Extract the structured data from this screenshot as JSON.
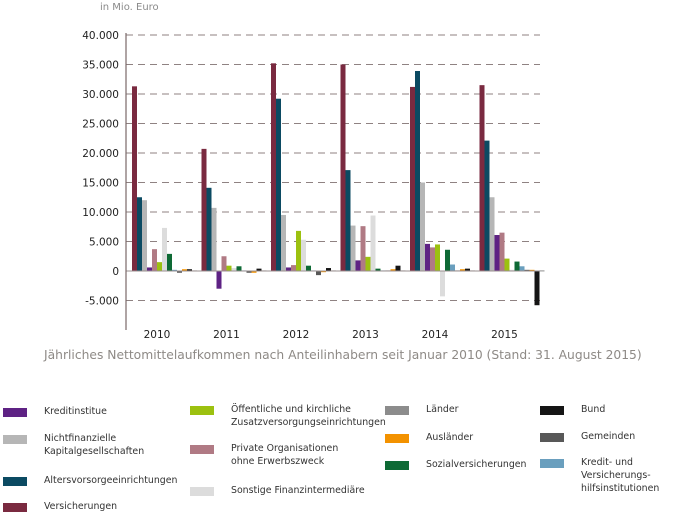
{
  "chart_data": {
    "type": "bar",
    "title": "Jährliches Nettomittelaufkommen nach Anteilinhabern seit Januar 2010 (Stand: 31. August 2015)",
    "ylabel": "in Mio. Euro",
    "xlabel": "",
    "ylim": [
      -9000,
      40000
    ],
    "yticks": [
      40000,
      35000,
      30000,
      25000,
      20000,
      15000,
      10000,
      5000,
      0,
      -5000
    ],
    "ytick_labels": [
      "40.000",
      "35.000",
      "30.000",
      "25.000",
      "20.000",
      "15.000",
      "10.000",
      "5.000",
      "0",
      "-5.000"
    ],
    "grid": true,
    "categories": [
      "2010",
      "2011",
      "2012",
      "2013",
      "2014",
      "2015"
    ],
    "series": [
      {
        "name": "Versicherungen",
        "color": "#7a2a40",
        "values": [
          31300,
          20700,
          35200,
          35000,
          31200,
          31500
        ]
      },
      {
        "name": "Altersvorsorgeeinrichtungen",
        "color": "#0b4a62",
        "values": [
          12500,
          14100,
          29200,
          17100,
          33900,
          22100
        ]
      },
      {
        "name": "Nichtfinanzielle Kapitalgesellschaften",
        "color": "#b6b6b6",
        "values": [
          12000,
          10700,
          9500,
          7700,
          15000,
          12500
        ]
      },
      {
        "name": "Kreditinstitue",
        "color": "#5e2284",
        "values": [
          600,
          -3000,
          600,
          1800,
          4600,
          6100
        ]
      },
      {
        "name": "Private Organisationen ohne Erwerbszweck",
        "color": "#b07a84",
        "values": [
          3700,
          2500,
          1000,
          7600,
          4000,
          6500
        ]
      },
      {
        "name": "Öffentliche und kirchliche Zusatzversorgungseinrichtungen",
        "color": "#9cc110",
        "values": [
          1500,
          900,
          6800,
          2400,
          4500,
          2100
        ]
      },
      {
        "name": "Sonstige Finanzintermediäre",
        "color": "#dcdcdc",
        "values": [
          7300,
          500,
          5300,
          9400,
          -4300,
          200
        ]
      },
      {
        "name": "Sozialversicherungen",
        "color": "#0e6a35",
        "values": [
          2900,
          800,
          900,
          400,
          3600,
          1600
        ]
      },
      {
        "name": "Kredit- und Versicherungs-\nhilfsinstitutionen",
        "color": "#6a9fbe",
        "values": [
          200,
          100,
          100,
          100,
          1100,
          800
        ]
      },
      {
        "name": "Gemeinden",
        "color": "#585858",
        "values": [
          -300,
          -300,
          -700,
          100,
          100,
          200
        ]
      },
      {
        "name": "Ausländer",
        "color": "#f39200",
        "values": [
          300,
          -300,
          -200,
          300,
          300,
          200
        ]
      },
      {
        "name": "Bund",
        "color": "#151515",
        "values": [
          300,
          400,
          500,
          900,
          400,
          -5800
        ]
      },
      {
        "name": "Länder",
        "color": "#8c8c8c",
        "values": [
          100,
          100,
          100,
          100,
          100,
          100
        ]
      }
    ],
    "legend": {
      "placement": "bottom",
      "columns": [
        [
          "Kreditinstitue",
          "Nichtfinanzielle\nKapitalgesellschaften",
          "Altersvorsorgeeinrichtungen",
          "Versicherungen"
        ],
        [
          "Öffentliche und kirchliche\nZusatzversorgungseinrichtungen",
          "Private Organisationen\nohne Erwerbszweck",
          "Sonstige Finanzintermediäre"
        ],
        [
          "Länder",
          "Ausländer",
          "Sozialversicherungen"
        ],
        [
          "Bund",
          "Gemeinden",
          "Kredit- und Versicherungs-\nhilfsinstitutionen"
        ]
      ]
    }
  },
  "legend_colors": {
    "Kreditinstitue": "#5e2284",
    "Nichtfinanzielle\nKapitalgesellschaften": "#b6b6b6",
    "Altersvorsorgeeinrichtungen": "#0b4a62",
    "Versicherungen": "#7a2a40",
    "Öffentliche und kirchliche\nZusatzversorgungseinrichtungen": "#9cc110",
    "Private Organisationen\nohne Erwerbszweck": "#b07a84",
    "Sonstige Finanzintermediäre": "#dcdcdc",
    "Länder": "#8c8c8c",
    "Ausländer": "#f39200",
    "Sozialversicherungen": "#0e6a35",
    "Bund": "#151515",
    "Gemeinden": "#585858",
    "Kredit- und Versicherungs-\nhilfsinstitutionen": "#6a9fbe"
  }
}
